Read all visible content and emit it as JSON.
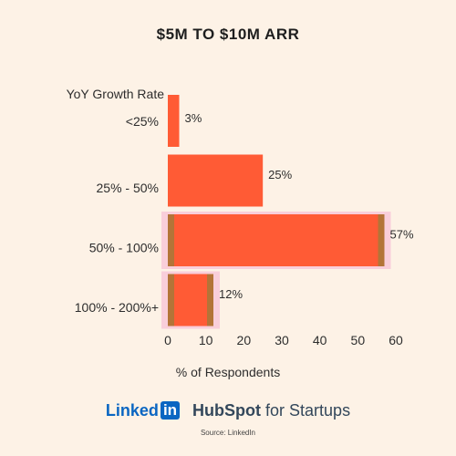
{
  "title": "$5M TO $10M ARR",
  "chart_data": {
    "type": "bar",
    "orientation": "horizontal",
    "title": "$5M TO $10M ARR",
    "ylabel": "YoY Growth Rate",
    "xlabel": "% of Respondents",
    "categories": [
      "<25%",
      "25% - 50%",
      "50% - 100%",
      "100% - 200%+"
    ],
    "values": [
      3,
      25,
      57,
      12
    ],
    "value_labels": [
      "3%",
      "25%",
      "57%",
      "12%"
    ],
    "xlim": [
      0,
      60
    ],
    "xticks": [
      0,
      10,
      20,
      30,
      40,
      50,
      60
    ],
    "grid": false,
    "bar_color": "#ff5b35",
    "highlighted_categories": [
      "50% - 100%",
      "100% - 200%+"
    ],
    "highlight_color": "#f7c2d6",
    "highlight_edge_color": "#a07a3a"
  },
  "logos": {
    "linkedin_prefix": "Linked",
    "linkedin_box": "in",
    "hubspot_word": "HubSpot",
    "hubspot_suffix": "for Startups"
  },
  "source": "Source: LinkedIn",
  "colors": {
    "background": "#fdf2e6",
    "bar": "#ff5b35",
    "text": "#2d2d2d",
    "linkedin": "#0a66c2",
    "hubspot_sprocket": "#ff7a59"
  }
}
